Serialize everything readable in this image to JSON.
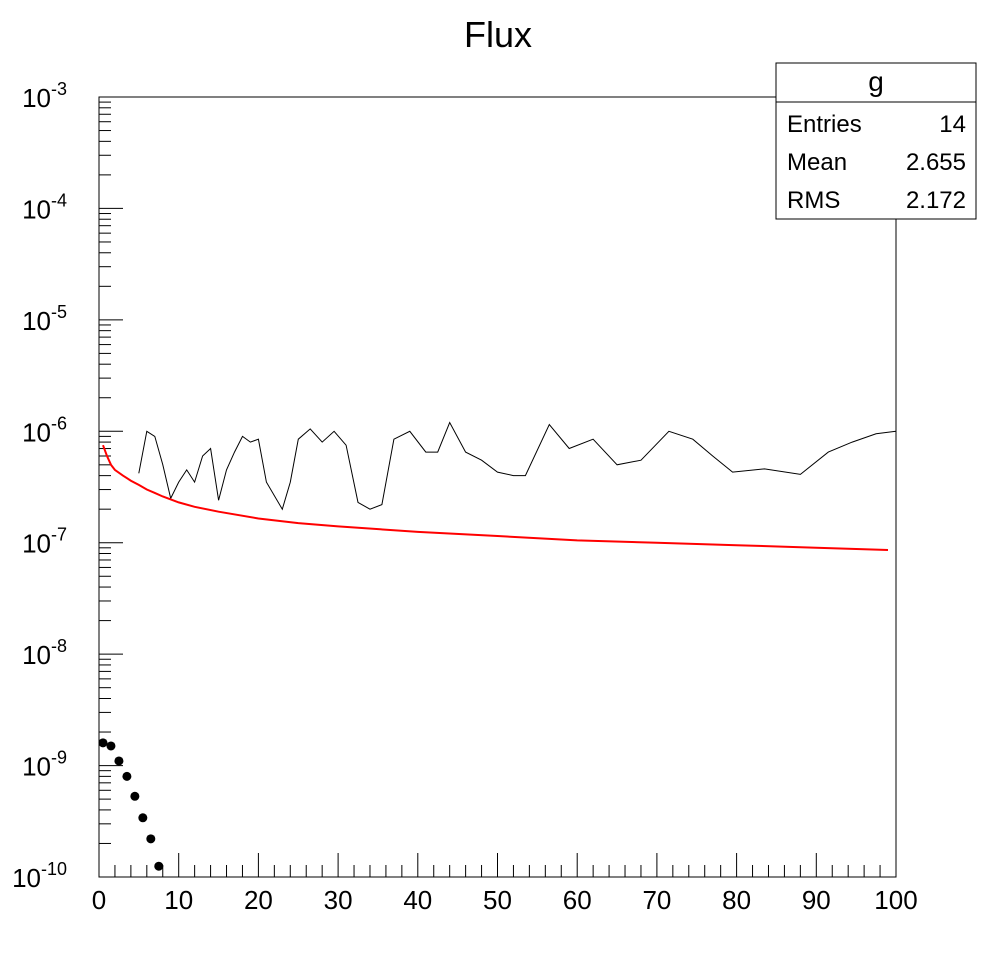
{
  "chart_data": {
    "type": "line",
    "title": "Flux",
    "xlabel": "",
    "ylabel": "",
    "xlim": [
      0,
      100
    ],
    "ylim": [
      1e-10,
      0.001
    ],
    "yscale": "log",
    "grid": false,
    "x_ticks": [
      "0",
      "10",
      "20",
      "30",
      "40",
      "50",
      "60",
      "70",
      "80",
      "90",
      "100"
    ],
    "y_tick_exponents": [
      "-10",
      "-9",
      "-8",
      "-7",
      "-6",
      "-5",
      "-4",
      "-3"
    ],
    "y_tick_base": "10",
    "stats_box": {
      "title": "g",
      "placement": "top-right",
      "rows": [
        {
          "label": "Entries",
          "value": "14"
        },
        {
          "label": "Mean",
          "value": "2.655"
        },
        {
          "label": "RMS",
          "value": "2.172"
        }
      ]
    },
    "series": [
      {
        "style": "line",
        "color": "#000000",
        "x": [
          5,
          6,
          7,
          8,
          9,
          10,
          11,
          12,
          13,
          14,
          15,
          16,
          17,
          18,
          19,
          20,
          21,
          23,
          24,
          25,
          26.5,
          28,
          29.5,
          31,
          32.5,
          34,
          35.5,
          37,
          39,
          41,
          42.5,
          44,
          46,
          48,
          50,
          52,
          53.5,
          56.5,
          59,
          62,
          65,
          68,
          71.5,
          74.5,
          77,
          79.5,
          83.5,
          88,
          91.5,
          94.5,
          97.5,
          100
        ],
        "y": [
          4.2e-07,
          1e-06,
          9e-07,
          5e-07,
          2.5e-07,
          3.5e-07,
          4.5e-07,
          3.5e-07,
          6e-07,
          7e-07,
          2.4e-07,
          4.5e-07,
          6.5e-07,
          9e-07,
          8e-07,
          8.5e-07,
          3.5e-07,
          2e-07,
          3.5e-07,
          8.5e-07,
          1.05e-06,
          8e-07,
          1e-06,
          7.5e-07,
          2.3e-07,
          2e-07,
          2.2e-07,
          8.5e-07,
          1e-06,
          6.5e-07,
          6.5e-07,
          1.2e-06,
          6.5e-07,
          5.5e-07,
          4.3e-07,
          4e-07,
          4e-07,
          1.15e-06,
          7e-07,
          8.5e-07,
          5e-07,
          5.5e-07,
          1e-06,
          8.5e-07,
          6e-07,
          4.3e-07,
          4.6e-07,
          4.1e-07,
          6.5e-07,
          8e-07,
          9.5e-07,
          1e-06
        ]
      },
      {
        "style": "line",
        "color": "#ff0000",
        "x": [
          0.5,
          1,
          1.5,
          2,
          3,
          4,
          5,
          6,
          7,
          8,
          10,
          12,
          15,
          20,
          25,
          30,
          40,
          50,
          60,
          70,
          80,
          90,
          99
        ],
        "y": [
          7.5e-07,
          6e-07,
          5e-07,
          4.5e-07,
          4e-07,
          3.6e-07,
          3.3e-07,
          3e-07,
          2.8e-07,
          2.6e-07,
          2.3e-07,
          2.1e-07,
          1.9e-07,
          1.65e-07,
          1.5e-07,
          1.4e-07,
          1.25e-07,
          1.15e-07,
          1.05e-07,
          1e-07,
          9.5e-08,
          9e-08,
          8.6e-08
        ]
      },
      {
        "style": "markers",
        "color": "#000000",
        "x": [
          0.5,
          1.5,
          2.5,
          3.5,
          4.5,
          5.5,
          6.5,
          7.5
        ],
        "y": [
          1.6e-09,
          1.5e-09,
          1.1e-09,
          8e-10,
          5.3e-10,
          3.4e-10,
          2.2e-10,
          1.25e-10
        ]
      }
    ]
  }
}
